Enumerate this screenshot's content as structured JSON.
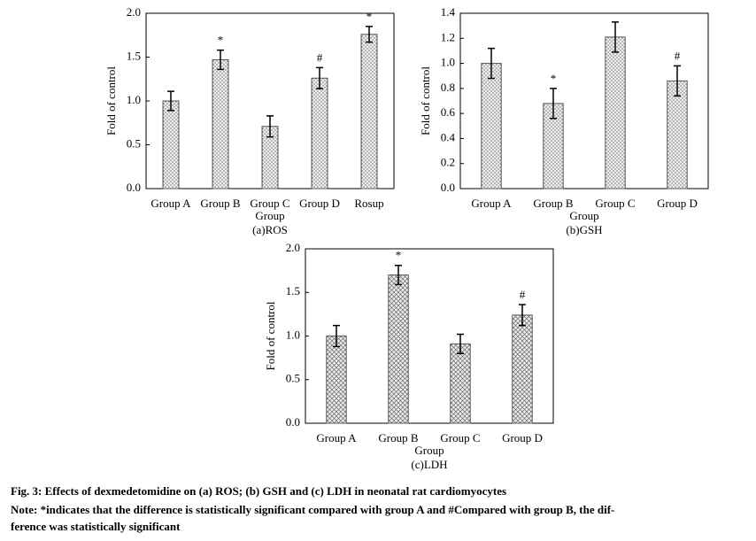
{
  "chart_data": [
    {
      "type": "bar",
      "panel_label": "(a)ROS",
      "xlabel": "Group",
      "ylabel": "Fold of control",
      "categories": [
        "Group A",
        "Group B",
        "Group C",
        "Group D",
        "Rosup"
      ],
      "values": [
        1.0,
        1.47,
        0.71,
        1.26,
        1.76
      ],
      "errors": [
        0.11,
        0.11,
        0.12,
        0.12,
        0.09
      ],
      "markers": [
        null,
        "*",
        null,
        "#",
        "*"
      ],
      "fill_pattern": "dots",
      "color": "#555555",
      "ylim": [
        0,
        2.0
      ],
      "yticks": [
        {
          "value": 0,
          "label": "0.0"
        },
        {
          "value": 0.5,
          "label": "0.5"
        },
        {
          "value": 1.0,
          "label": "1.0"
        },
        {
          "value": 1.5,
          "label": "1.5"
        },
        {
          "value": 2.0,
          "label": "2.0"
        }
      ]
    },
    {
      "type": "bar",
      "panel_label": "(b)GSH",
      "xlabel": "Group",
      "ylabel": "Fold of control",
      "categories": [
        "Group A",
        "Group B",
        "Group C",
        "Group D"
      ],
      "values": [
        1.0,
        0.68,
        1.21,
        0.86
      ],
      "errors": [
        0.12,
        0.12,
        0.12,
        0.12
      ],
      "markers": [
        null,
        "*",
        null,
        "#"
      ],
      "fill_pattern": "dots",
      "color": "#555555",
      "ylim": [
        0,
        1.4
      ],
      "yticks": [
        {
          "value": 0,
          "label": "0.0"
        },
        {
          "value": 0.2,
          "label": "0.2"
        },
        {
          "value": 0.4,
          "label": "0.4"
        },
        {
          "value": 0.6,
          "label": "0.6"
        },
        {
          "value": 0.8,
          "label": "0.8"
        },
        {
          "value": 1.0,
          "label": "1.0"
        },
        {
          "value": 1.2,
          "label": "1.2"
        },
        {
          "value": 1.4,
          "label": "1.4"
        }
      ]
    },
    {
      "type": "bar",
      "panel_label": "(c)LDH",
      "xlabel": "Group",
      "ylabel": "Fold of control",
      "categories": [
        "Group A",
        "Group B",
        "Group C",
        "Group D"
      ],
      "values": [
        1.0,
        1.7,
        0.91,
        1.24
      ],
      "errors": [
        0.12,
        0.11,
        0.11,
        0.12
      ],
      "markers": [
        null,
        "*",
        null,
        "#"
      ],
      "fill_pattern": "crosshatch",
      "color": "#555555",
      "ylim": [
        0,
        2.0
      ],
      "yticks": [
        {
          "value": 0,
          "label": "0.0"
        },
        {
          "value": 0.5,
          "label": "0.5"
        },
        {
          "value": 1.0,
          "label": "1.0"
        },
        {
          "value": 1.5,
          "label": "1.5"
        },
        {
          "value": 2.0,
          "label": "2.0"
        }
      ]
    }
  ],
  "caption": {
    "title": "Fig. 3: Effects of dexmedetomidine on (a) ROS; (b) GSH and (c) LDH in neonatal rat cardiomyocytes",
    "note": [
      "Note: *indicates that the difference is statistically significant compared with group A and #Compared with group B, the dif-",
      "ference was statistically significant"
    ]
  }
}
